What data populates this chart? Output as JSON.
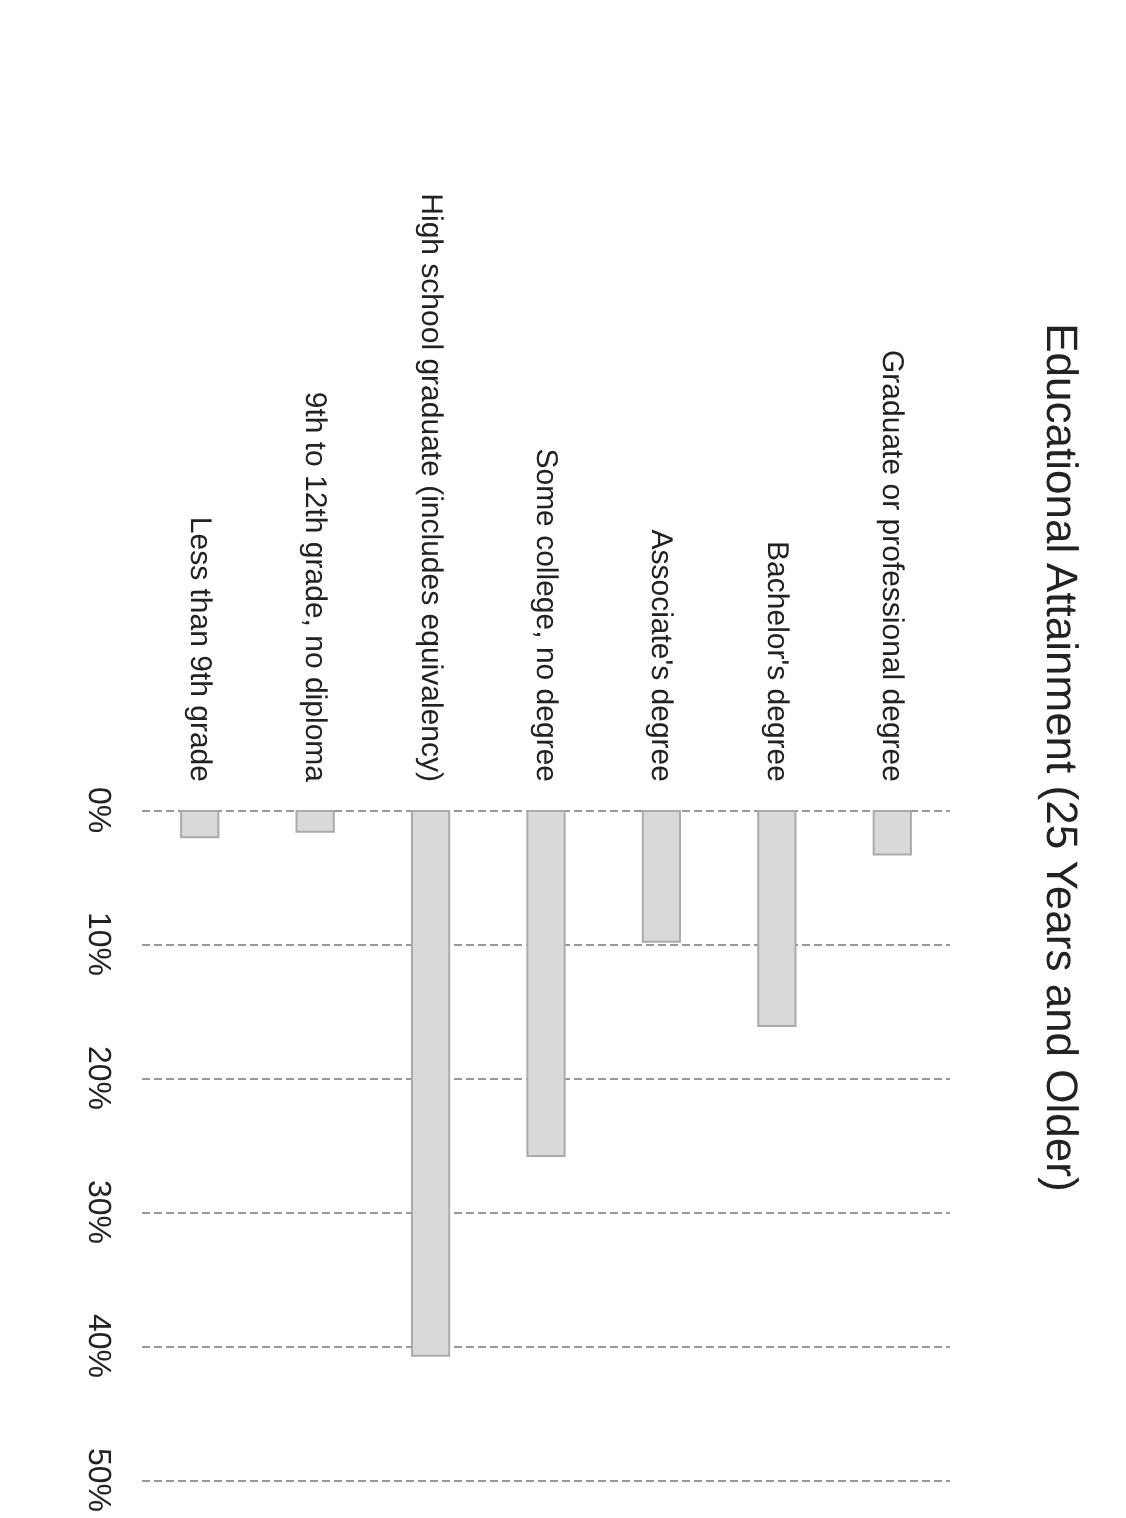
{
  "chart_data": {
    "type": "bar",
    "title": "Educational Attainment (25 Years and Older)",
    "categories": [
      "Less than 9th grade",
      "9th to 12th grade, no diploma",
      "High school graduate (includes equivalency)",
      "Some college, no degree",
      "Associate's degree",
      "Bachelor's degree",
      "Graduate or professional degree"
    ],
    "values": [
      2.1,
      1.7,
      40.8,
      25.9,
      9.9,
      16.2,
      3.4
    ],
    "color": "#d9d9d9",
    "ylim": [
      50,
      0
    ],
    "yticks": [
      {
        "value": 0,
        "label": "0%"
      },
      {
        "value": 10,
        "label": "10%"
      },
      {
        "value": 20,
        "label": "20%"
      },
      {
        "value": 30,
        "label": "30%"
      },
      {
        "value": 40,
        "label": "40%"
      },
      {
        "value": 50,
        "label": "50%"
      }
    ],
    "grid": true
  }
}
